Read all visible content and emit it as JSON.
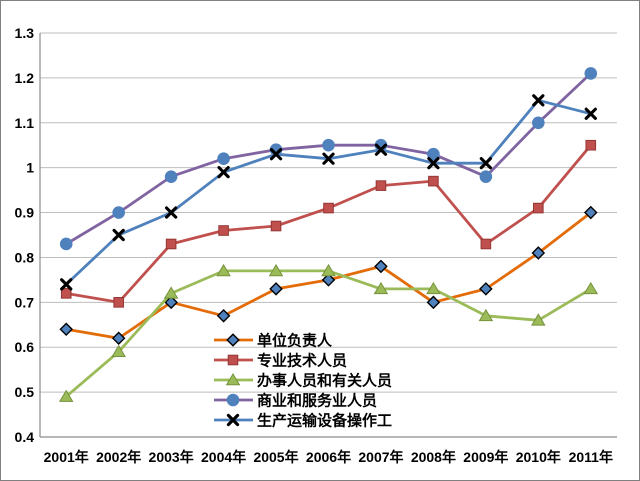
{
  "chart_data": {
    "type": "line",
    "title": "",
    "xlabel": "",
    "ylabel": "",
    "categories": [
      "2001年",
      "2002年",
      "2003年",
      "2004年",
      "2005年",
      "2006年",
      "2007年",
      "2008年",
      "2009年",
      "2010年",
      "2011年"
    ],
    "series": [
      {
        "name": "单位负责人",
        "line_color": "#E36C09",
        "marker": "diamond",
        "marker_fill": "#4F81BD",
        "marker_outline": "#000000",
        "values": [
          0.64,
          0.62,
          0.7,
          0.67,
          0.73,
          0.75,
          0.78,
          0.7,
          0.73,
          0.81,
          0.9
        ]
      },
      {
        "name": "专业技术人员",
        "line_color": "#C0504D",
        "marker": "square",
        "marker_fill": "#C0504D",
        "marker_outline": "#943634",
        "values": [
          0.72,
          0.7,
          0.83,
          0.86,
          0.87,
          0.91,
          0.96,
          0.97,
          0.83,
          0.91,
          1.05
        ]
      },
      {
        "name": "办事人员和有关人员",
        "line_color": "#9BBB59",
        "marker": "triangle",
        "marker_fill": "#9BBB59",
        "marker_outline": "#76923C",
        "values": [
          0.49,
          0.59,
          0.72,
          0.77,
          0.77,
          0.77,
          0.73,
          0.73,
          0.67,
          0.66,
          0.73
        ]
      },
      {
        "name": "商业和服务业人员",
        "line_color": "#8064A2",
        "marker": "circle",
        "marker_fill": "#4F81BD",
        "marker_outline": "#4F81BD",
        "values": [
          0.83,
          0.9,
          0.98,
          1.02,
          1.04,
          1.05,
          1.05,
          1.03,
          0.98,
          1.1,
          1.21
        ]
      },
      {
        "name": "生产运输设备操作工",
        "line_color": "#4F81BD",
        "marker": "x",
        "marker_fill": "#000000",
        "marker_outline": "#000000",
        "values": [
          0.74,
          0.85,
          0.9,
          0.99,
          1.03,
          1.02,
          1.04,
          1.01,
          1.01,
          1.15,
          1.12
        ]
      }
    ],
    "ylim": [
      0.4,
      1.3
    ],
    "ytick_step": 0.1,
    "ytick_labels": [
      "0.4",
      "0.5",
      "0.6",
      "0.7",
      "0.8",
      "0.9",
      "1",
      "1.1",
      "1.2",
      "1.3"
    ],
    "grid": true,
    "legend_position": "inside-bottom-center",
    "colors": {
      "gridline": "#BDBDBD",
      "axis": "#8C8C8C",
      "border": "#808080",
      "background": "#FFFFFF",
      "text": "#000000"
    }
  }
}
